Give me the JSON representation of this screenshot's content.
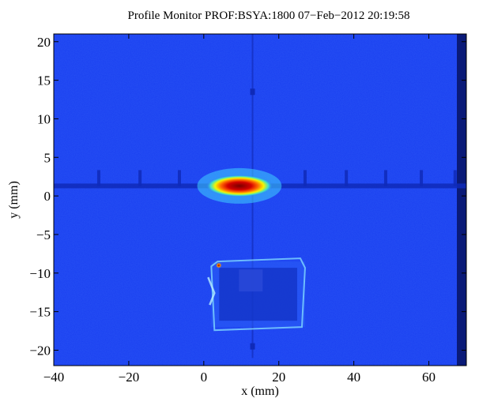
{
  "chart_data": {
    "type": "heatmap",
    "title": "Profile Monitor PROF:BSYA:1800 07−Feb−2012 20:19:58",
    "xlabel": "x  (mm)",
    "ylabel": "y  (mm)",
    "xlim": [
      -40,
      70
    ],
    "ylim": [
      -22,
      21
    ],
    "xticks": [
      {
        "value": -40,
        "label": "−40"
      },
      {
        "value": -20,
        "label": "−20"
      },
      {
        "value": 0,
        "label": "0"
      },
      {
        "value": 20,
        "label": "20"
      },
      {
        "value": 40,
        "label": "40"
      },
      {
        "value": 60,
        "label": "60"
      }
    ],
    "yticks": [
      {
        "value": 20,
        "label": "20"
      },
      {
        "value": 15,
        "label": "15"
      },
      {
        "value": 10,
        "label": "10"
      },
      {
        "value": 5,
        "label": "5"
      },
      {
        "value": 0,
        "label": "0"
      },
      {
        "value": -5,
        "label": "−5"
      },
      {
        "value": -10,
        "label": "−10"
      },
      {
        "value": -15,
        "label": "−15"
      },
      {
        "value": -20,
        "label": "−20"
      }
    ],
    "colormap": "jet",
    "background_color": "#1a3ff0",
    "features": {
      "horizontal_line_y": 1.3,
      "vertical_line_x": 13,
      "beam_spot": {
        "x": 9.5,
        "y": 1.3,
        "width": 9,
        "height": 0.9
      },
      "hot_pixel": {
        "x": 4,
        "y": -9
      },
      "target_frame": {
        "x_min": 2,
        "x_max": 27,
        "y_min": -17,
        "y_max": -8.5
      },
      "hash_marks_x": [
        -28,
        -17,
        -6.5,
        27,
        38,
        48.5,
        58,
        67
      ]
    },
    "grid": false
  }
}
